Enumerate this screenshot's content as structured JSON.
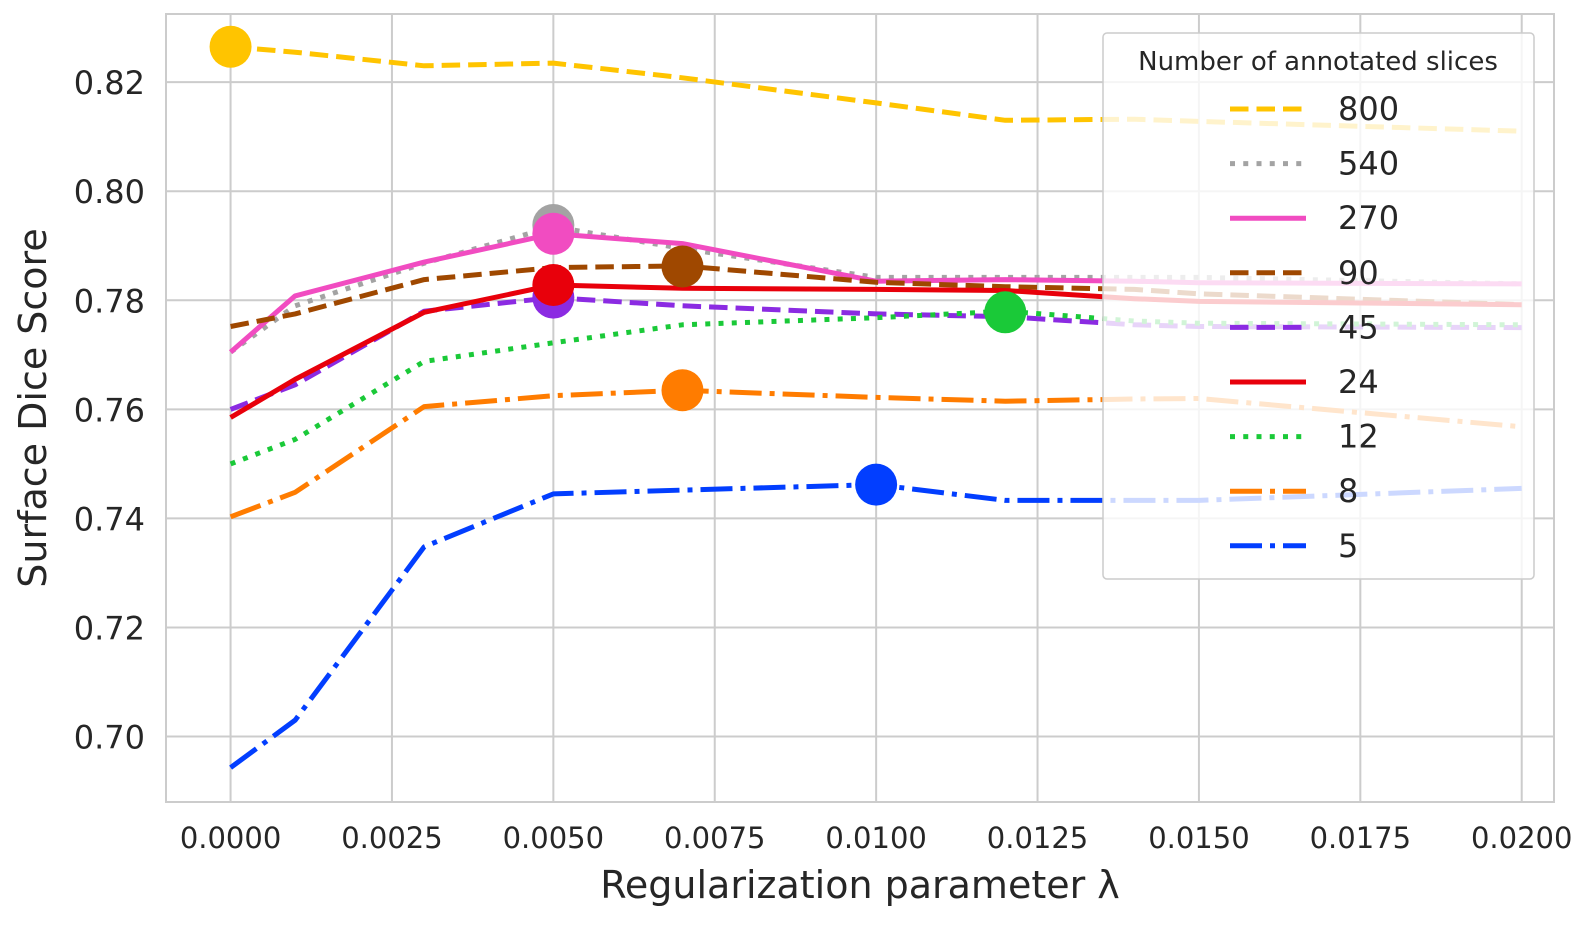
{
  "chart_data": {
    "type": "line",
    "xlabel": "Regularization parameter  λ",
    "ylabel": "Surface Dice Score",
    "xlim": [
      -0.001,
      0.0205
    ],
    "ylim": [
      0.688,
      0.8325
    ],
    "x_ticks": [
      0.0,
      0.0025,
      0.005,
      0.0075,
      0.01,
      0.0125,
      0.015,
      0.0175,
      0.02
    ],
    "x_tick_labels": [
      "0.0000",
      "0.0025",
      "0.0050",
      "0.0075",
      "0.0100",
      "0.0125",
      "0.0150",
      "0.0175",
      "0.0200"
    ],
    "y_ticks": [
      0.7,
      0.72,
      0.74,
      0.76,
      0.78,
      0.8,
      0.82
    ],
    "y_tick_labels": [
      "0.70",
      "0.72",
      "0.74",
      "0.76",
      "0.78",
      "0.80",
      "0.82"
    ],
    "grid": true,
    "legend": {
      "title": "Number of annotated slices",
      "placement": "upper right"
    },
    "x": [
      0.0,
      0.001,
      0.003,
      0.005,
      0.007,
      0.01,
      0.012,
      0.014,
      0.015,
      0.02
    ],
    "series": [
      {
        "name": "800",
        "color": "#ffc400",
        "dash": "dashed",
        "values": [
          0.8265,
          0.8255,
          0.823,
          0.8235,
          0.8208,
          0.8162,
          0.813,
          0.8132,
          0.8128,
          0.811
        ],
        "best": {
          "x": 0.0,
          "y": 0.8265
        }
      },
      {
        "name": "540",
        "color": "#a3a3a3",
        "dash": "dotted",
        "values": [
          0.7705,
          0.779,
          0.7868,
          0.7935,
          0.7895,
          0.7842,
          0.7842,
          0.7842,
          0.7842,
          0.783
        ],
        "best": {
          "x": 0.005,
          "y": 0.7938
        }
      },
      {
        "name": "270",
        "color": "#f14cc1",
        "dash": "solid",
        "values": [
          0.7705,
          0.7808,
          0.787,
          0.7922,
          0.7904,
          0.7835,
          0.7838,
          0.7835,
          0.7832,
          0.783
        ],
        "best": {
          "x": 0.005,
          "y": 0.7922
        }
      },
      {
        "name": "90",
        "color": "#9f4800",
        "dash": "dashed",
        "values": [
          0.7752,
          0.7775,
          0.7838,
          0.786,
          0.7863,
          0.7833,
          0.7825,
          0.782,
          0.7812,
          0.7792
        ],
        "best": {
          "x": 0.007,
          "y": 0.7862
        }
      },
      {
        "name": "45",
        "color": "#8b2be2",
        "dash": "dashed",
        "values": [
          0.76,
          0.7645,
          0.778,
          0.7805,
          0.779,
          0.7775,
          0.777,
          0.7755,
          0.7752,
          0.775
        ],
        "best": {
          "x": 0.005,
          "y": 0.7805
        }
      },
      {
        "name": "24",
        "color": "#e8000b",
        "dash": "solid",
        "values": [
          0.7585,
          0.7655,
          0.7778,
          0.7828,
          0.7822,
          0.782,
          0.7818,
          0.7803,
          0.7798,
          0.7792
        ],
        "best": {
          "x": 0.005,
          "y": 0.7828
        }
      },
      {
        "name": "12",
        "color": "#1ac938",
        "dash": "dotted",
        "values": [
          0.75,
          0.7545,
          0.7688,
          0.7722,
          0.7755,
          0.7768,
          0.778,
          0.7762,
          0.7758,
          0.7755
        ],
        "best": {
          "x": 0.012,
          "y": 0.7778
        }
      },
      {
        "name": "8",
        "color": "#ff7c00",
        "dash": "dashdot",
        "values": [
          0.7403,
          0.7448,
          0.7605,
          0.7625,
          0.7635,
          0.7622,
          0.7615,
          0.7619,
          0.762,
          0.7568
        ],
        "best": {
          "x": 0.007,
          "y": 0.7635
        }
      },
      {
        "name": "5",
        "color": "#023eff",
        "dash": "dashdot",
        "values": [
          0.6943,
          0.703,
          0.7348,
          0.7445,
          0.7452,
          0.7462,
          0.7433,
          0.7433,
          0.7433,
          0.7455
        ],
        "best": {
          "x": 0.01,
          "y": 0.7462
        }
      }
    ]
  }
}
